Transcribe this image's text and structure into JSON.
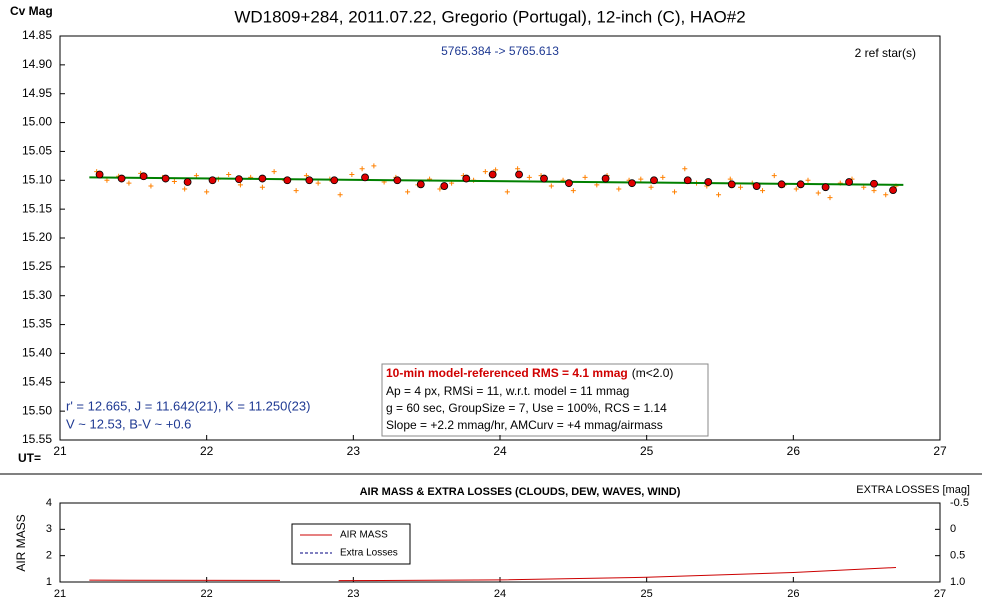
{
  "chart_data": [
    {
      "type": "scatter",
      "title": "WD1809+284, 2011.07.22, Gregorio (Portugal), 12-inch (C), HAO#2",
      "ylabel": "Cv Mag",
      "xlabel": "UT= ",
      "subtitle": "5765.384 -> 5765.613",
      "note": "2 ref star(s)",
      "star_info": [
        "r' = 12.665, J = 11.642(21), K = 11.250(23)",
        "V ~ 12.53, B-V ~ +0.6"
      ],
      "stats_box": {
        "headline": "10-min model-referenced RMS = 4.1 mmag",
        "headline_note": "(m<2.0)",
        "lines": [
          "Ap = 4 px, RMSi = 11, w.r.t. model = 11 mmag",
          "g = 60 sec, GroupSize = 7, Use = 100%, RCS = 1.14",
          "Slope = +2.2 mmag/hr, AMCurv = +4 mmag/airmass"
        ]
      },
      "xlim": [
        21,
        27
      ],
      "xticks": [
        21,
        22,
        23,
        24,
        25,
        26,
        27
      ],
      "ylim": [
        14.85,
        15.55
      ],
      "y_inverted": true,
      "yticks": [
        14.85,
        {
          "value": 14.9,
          "label": "14.90"
        },
        14.95,
        {
          "value": 15.0,
          "label": "15.00"
        },
        15.05,
        {
          "value": 15.1,
          "label": "15.10"
        },
        15.15,
        {
          "value": 15.2,
          "label": "15.20"
        },
        15.25,
        {
          "value": 15.3,
          "label": "15.30"
        },
        15.35,
        {
          "value": 15.4,
          "label": "15.40"
        },
        15.45,
        {
          "value": 15.5,
          "label": "15.50"
        },
        15.55
      ],
      "series": [
        {
          "marker": "plus",
          "color": "#ff8000",
          "x": [
            21.25,
            21.32,
            21.4,
            21.47,
            21.55,
            21.62,
            21.7,
            21.78,
            21.85,
            21.93,
            22.0,
            22.08,
            22.15,
            22.23,
            22.3,
            22.38,
            22.46,
            22.53,
            22.61,
            22.68,
            22.76,
            22.84,
            22.91,
            22.99,
            23.06,
            23.14,
            23.21,
            23.29,
            23.37,
            23.44,
            23.52,
            23.59,
            23.67,
            23.75,
            23.82,
            23.9,
            23.97,
            24.05,
            24.12,
            24.2,
            24.28,
            24.35,
            24.43,
            24.5,
            24.58,
            24.66,
            24.73,
            24.81,
            24.88,
            24.96,
            25.03,
            25.11,
            25.19,
            25.26,
            25.34,
            25.41,
            25.49,
            25.57,
            25.64,
            25.72,
            25.79,
            25.87,
            25.94,
            26.02,
            26.1,
            26.17,
            26.25,
            26.32,
            26.4,
            26.48,
            26.55,
            26.63,
            26.7
          ],
          "values": [
            15.085,
            15.1,
            15.093,
            15.105,
            15.088,
            15.11,
            15.095,
            15.102,
            15.115,
            15.092,
            15.12,
            15.098,
            15.09,
            15.108,
            15.095,
            15.112,
            15.085,
            15.1,
            15.118,
            15.092,
            15.105,
            15.098,
            15.125,
            15.09,
            15.08,
            15.075,
            15.103,
            15.095,
            15.12,
            15.108,
            15.098,
            15.115,
            15.105,
            15.092,
            15.1,
            15.085,
            15.082,
            15.12,
            15.08,
            15.095,
            15.092,
            15.11,
            15.1,
            15.118,
            15.095,
            15.108,
            15.092,
            15.115,
            15.1,
            15.098,
            15.112,
            15.095,
            15.12,
            15.08,
            15.105,
            15.11,
            15.125,
            15.098,
            15.112,
            15.105,
            15.118,
            15.092,
            15.108,
            15.115,
            15.1,
            15.122,
            15.13,
            15.105,
            15.098,
            15.112,
            15.118,
            15.125,
            15.11
          ]
        },
        {
          "marker": "line",
          "color": "#008000",
          "x": [
            21.2,
            26.75
          ],
          "values": [
            15.095,
            15.108
          ]
        },
        {
          "marker": "circle",
          "color": "#e00000",
          "x": [
            21.27,
            21.42,
            21.57,
            21.72,
            21.87,
            22.04,
            22.22,
            22.38,
            22.55,
            22.7,
            22.87,
            23.08,
            23.3,
            23.46,
            23.62,
            23.77,
            23.95,
            24.13,
            24.3,
            24.47,
            24.72,
            24.9,
            25.05,
            25.28,
            25.42,
            25.58,
            25.75,
            25.92,
            26.05,
            26.22,
            26.38,
            26.55,
            26.68
          ],
          "values": [
            15.09,
            15.097,
            15.093,
            15.097,
            15.103,
            15.1,
            15.098,
            15.097,
            15.1,
            15.1,
            15.1,
            15.095,
            15.1,
            15.107,
            15.11,
            15.097,
            15.09,
            15.09,
            15.097,
            15.105,
            15.097,
            15.105,
            15.1,
            15.1,
            15.103,
            15.107,
            15.11,
            15.107,
            15.107,
            15.112,
            15.103,
            15.106,
            15.117
          ]
        }
      ]
    },
    {
      "type": "line",
      "title": "AIR MASS & EXTRA LOSSES (CLOUDS, DEW, WAVES, WIND)",
      "ylabel": "AIR MASS",
      "y2label": "EXTRA LOSSES [mag]",
      "xlim": [
        21,
        27
      ],
      "xticks": [
        21,
        22,
        23,
        24,
        25,
        26,
        27
      ],
      "ylim": [
        1,
        4
      ],
      "yticks": [
        1,
        2,
        3,
        4
      ],
      "y2lim": [
        -0.5,
        1.0
      ],
      "y2_inverted": true,
      "y2ticks": [
        -0.5,
        0,
        0.5,
        {
          "value": 1.0,
          "label": "1.0"
        }
      ],
      "series": [
        {
          "name": "AIR MASS",
          "color": "#cc0000",
          "x": [
            21.2,
            22.5,
            22.7,
            22.9,
            24,
            25,
            26,
            26.7
          ],
          "values": [
            1.07,
            1.06,
            null,
            1.05,
            1.08,
            1.18,
            1.36,
            1.55
          ]
        },
        {
          "name": "Extra Losses",
          "color": "#000080",
          "dashed": true,
          "axis": "y2",
          "x": [
            21.2,
            22.5,
            22.7,
            22.9,
            24,
            25,
            26,
            26.7
          ],
          "values": [
            null,
            null,
            null,
            null,
            null,
            null,
            null,
            null
          ]
        }
      ]
    }
  ]
}
